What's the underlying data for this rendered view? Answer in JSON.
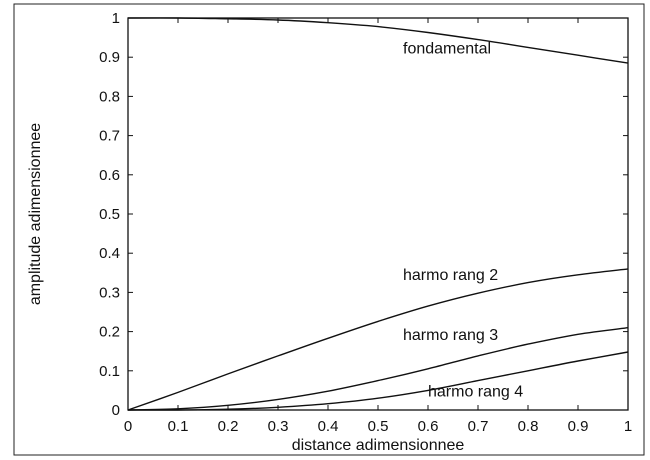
{
  "chart_data": {
    "type": "line",
    "xlabel": "distance adimensionnee",
    "ylabel": "amplitude adimensionnee",
    "xlim": [
      0,
      1
    ],
    "ylim": [
      0,
      1
    ],
    "x_ticks": [
      "0",
      "0.1",
      "0.2",
      "0.3",
      "0.4",
      "0.5",
      "0.6",
      "0.7",
      "0.8",
      "0.9",
      "1"
    ],
    "y_ticks": [
      "0",
      "0.1",
      "0.2",
      "0.3",
      "0.4",
      "0.5",
      "0.6",
      "0.7",
      "0.8",
      "0.9",
      "1"
    ],
    "grid": false,
    "legend": "none",
    "line_color": "#111111",
    "x": [
      0,
      0.1,
      0.2,
      0.3,
      0.4,
      0.5,
      0.6,
      0.7,
      0.8,
      0.9,
      1.0
    ],
    "series": [
      {
        "name": "fondamental",
        "values": [
          1.0,
          1.0,
          0.998,
          0.995,
          0.988,
          0.978,
          0.963,
          0.945,
          0.925,
          0.905,
          0.885
        ]
      },
      {
        "name": "harmo rang 2",
        "values": [
          0.0,
          0.045,
          0.092,
          0.138,
          0.183,
          0.226,
          0.265,
          0.298,
          0.325,
          0.345,
          0.36
        ]
      },
      {
        "name": "harmo rang 3",
        "values": [
          0.0,
          0.003,
          0.012,
          0.027,
          0.048,
          0.075,
          0.105,
          0.138,
          0.168,
          0.193,
          0.21
        ]
      },
      {
        "name": "harmo rang 4",
        "values": [
          0.0,
          0.0,
          0.002,
          0.007,
          0.016,
          0.03,
          0.05,
          0.075,
          0.1,
          0.125,
          0.148
        ]
      }
    ]
  }
}
